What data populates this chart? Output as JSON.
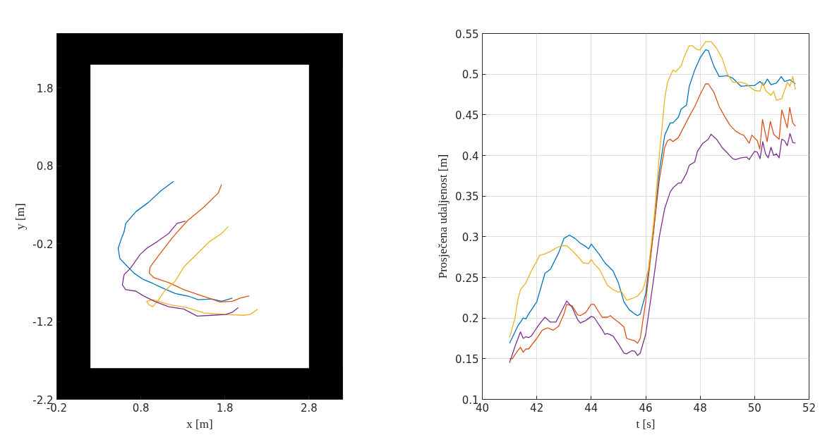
{
  "chart_data": [
    {
      "type": "line",
      "xlabel": "x [m]",
      "ylabel": "y [m]",
      "xlim": [
        -0.2,
        3.2
      ],
      "ylim": [
        -2.2,
        2.5
      ],
      "xticks": [
        -0.2,
        0.8,
        1.8,
        2.8
      ],
      "yticks": [
        -2.2,
        -1.2,
        -0.2,
        0.8,
        1.8
      ],
      "grid": false,
      "bands": [
        {
          "axis": "x",
          "from": -0.2,
          "to": 0.2,
          "color": "#000000"
        },
        {
          "axis": "x",
          "from": 2.8,
          "to": 3.2,
          "color": "#000000"
        },
        {
          "axis": "y",
          "from": -2.2,
          "to": -1.8,
          "color": "#000000"
        },
        {
          "axis": "y",
          "from": 2.1,
          "to": 2.5,
          "color": "#000000"
        }
      ],
      "series": [
        {
          "color": "#0072bd",
          "x": [
            1.19,
            1.04,
            0.89,
            0.74,
            0.66,
            0.62,
            0.6,
            0.57,
            0.53,
            0.55,
            0.62,
            0.72,
            0.83,
            0.94,
            1.06,
            1.21,
            1.38,
            1.48,
            1.64,
            1.76,
            1.89
          ],
          "values": [
            0.6,
            0.48,
            0.33,
            0.21,
            0.11,
            0.06,
            -0.05,
            -0.13,
            -0.26,
            -0.39,
            -0.47,
            -0.58,
            -0.66,
            -0.71,
            -0.77,
            -0.84,
            -0.88,
            -0.92,
            -0.91,
            -0.94,
            -0.9
          ]
        },
        {
          "color": "#d95319",
          "x": [
            1.76,
            1.72,
            1.55,
            1.36,
            1.25,
            1.17,
            1.02,
            0.91,
            0.9,
            0.96,
            1.13,
            1.31,
            1.47,
            1.64,
            1.74,
            1.89,
            1.98,
            2.09
          ],
          "values": [
            0.56,
            0.45,
            0.27,
            0.1,
            -0.03,
            -0.13,
            -0.34,
            -0.5,
            -0.58,
            -0.64,
            -0.7,
            -0.79,
            -0.85,
            -0.91,
            -0.95,
            -0.94,
            -0.9,
            -0.87
          ]
        },
        {
          "color": "#edb120",
          "x": [
            1.84,
            1.76,
            1.62,
            1.47,
            1.31,
            1.21,
            1.08,
            1.0,
            0.94,
            0.89,
            0.87,
            0.94,
            1.13,
            1.34,
            1.55,
            1.81,
            2.02,
            2.1,
            2.19
          ],
          "values": [
            0.02,
            -0.07,
            -0.17,
            -0.33,
            -0.5,
            -0.68,
            -0.81,
            -0.94,
            -1.01,
            -0.98,
            -0.94,
            -0.92,
            -0.98,
            -1.02,
            -1.09,
            -1.11,
            -1.12,
            -1.11,
            -1.04
          ]
        },
        {
          "color": "#7e2f8e",
          "x": [
            1.33,
            1.23,
            1.13,
            1.0,
            0.87,
            0.79,
            0.68,
            0.6,
            0.58,
            0.62,
            0.74,
            0.83,
            0.96,
            1.13,
            1.31,
            1.47,
            1.64,
            1.81,
            1.89,
            1.96
          ],
          "values": [
            0.09,
            0.06,
            -0.07,
            -0.17,
            -0.26,
            -0.34,
            -0.51,
            -0.6,
            -0.73,
            -0.79,
            -0.81,
            -0.87,
            -0.94,
            -1.01,
            -1.04,
            -1.13,
            -1.12,
            -1.11,
            -1.08,
            -1.02
          ]
        }
      ]
    },
    {
      "type": "line",
      "xlabel": "t [s]",
      "ylabel": "Prosječena udaljenost [m]",
      "xlim": [
        40,
        52
      ],
      "ylim": [
        0.1,
        0.55
      ],
      "xticks": [
        40,
        42,
        44,
        46,
        48,
        50,
        52
      ],
      "yticks": [
        0.1,
        0.15,
        0.2,
        0.25,
        0.3,
        0.35,
        0.4,
        0.45,
        0.5,
        0.55
      ],
      "grid": true,
      "series": [
        {
          "color": "#0072bd",
          "x": [
            41.0,
            41.3,
            41.5,
            41.6,
            41.7,
            42.0,
            42.3,
            42.5,
            42.8,
            43.0,
            43.2,
            43.4,
            43.6,
            43.8,
            43.9,
            44.0,
            44.3,
            44.5,
            44.8,
            45.0,
            45.2,
            45.4,
            45.6,
            45.7,
            45.8,
            46.0,
            46.3,
            46.5,
            46.7,
            46.9,
            47.0,
            47.2,
            47.3,
            47.5,
            47.6,
            47.8,
            48.0,
            48.2,
            48.3,
            48.5,
            48.7,
            49.0,
            49.2,
            49.5,
            49.8,
            50.0,
            50.2,
            50.33,
            50.47,
            50.6,
            50.8,
            50.98,
            51.1,
            51.3,
            51.5
          ],
          "values": [
            0.169,
            0.19,
            0.2,
            0.199,
            0.205,
            0.22,
            0.255,
            0.26,
            0.28,
            0.298,
            0.302,
            0.298,
            0.292,
            0.288,
            0.285,
            0.291,
            0.278,
            0.268,
            0.258,
            0.243,
            0.22,
            0.21,
            0.205,
            0.203,
            0.205,
            0.23,
            0.31,
            0.38,
            0.425,
            0.44,
            0.44,
            0.447,
            0.457,
            0.462,
            0.485,
            0.505,
            0.52,
            0.53,
            0.529,
            0.51,
            0.497,
            0.498,
            0.495,
            0.485,
            0.486,
            0.486,
            0.491,
            0.486,
            0.494,
            0.487,
            0.489,
            0.497,
            0.491,
            0.493,
            0.488
          ]
        },
        {
          "color": "#d95319",
          "x": [
            41.0,
            41.1,
            41.3,
            41.4,
            41.5,
            41.6,
            41.7,
            42.0,
            42.2,
            42.4,
            42.6,
            42.8,
            43.0,
            43.1,
            43.3,
            43.5,
            43.6,
            43.8,
            44.0,
            44.1,
            44.4,
            44.6,
            44.7,
            44.8,
            45.0,
            45.2,
            45.3,
            45.5,
            45.6,
            45.7,
            45.8,
            46.0,
            46.3,
            46.5,
            46.7,
            46.8,
            46.9,
            47.0,
            47.2,
            47.4,
            47.6,
            47.8,
            48.0,
            48.2,
            48.3,
            48.5,
            48.7,
            48.9,
            49.1,
            49.3,
            49.5,
            49.6,
            49.8,
            49.9,
            50.1,
            50.19,
            50.29,
            50.46,
            50.58,
            50.7,
            50.9,
            51.0,
            51.2,
            51.29,
            51.4,
            51.5
          ],
          "values": [
            0.15,
            0.15,
            0.16,
            0.164,
            0.158,
            0.162,
            0.162,
            0.175,
            0.185,
            0.188,
            0.185,
            0.19,
            0.205,
            0.217,
            0.215,
            0.204,
            0.203,
            0.207,
            0.217,
            0.217,
            0.201,
            0.201,
            0.203,
            0.2,
            0.195,
            0.189,
            0.175,
            0.173,
            0.172,
            0.169,
            0.175,
            0.22,
            0.31,
            0.37,
            0.41,
            0.418,
            0.42,
            0.417,
            0.422,
            0.435,
            0.448,
            0.46,
            0.475,
            0.488,
            0.488,
            0.478,
            0.46,
            0.448,
            0.437,
            0.43,
            0.426,
            0.425,
            0.415,
            0.425,
            0.418,
            0.408,
            0.444,
            0.417,
            0.442,
            0.426,
            0.42,
            0.456,
            0.434,
            0.459,
            0.44,
            0.436
          ]
        },
        {
          "color": "#edb120",
          "x": [
            41.0,
            41.2,
            41.3,
            41.4,
            41.6,
            41.8,
            42.0,
            42.1,
            42.3,
            42.5,
            42.7,
            42.9,
            43.1,
            43.3,
            43.5,
            43.7,
            43.9,
            44.0,
            44.1,
            44.3,
            44.6,
            44.8,
            45.0,
            45.1,
            45.3,
            45.5,
            45.7,
            45.9,
            46.1,
            46.3,
            46.5,
            46.7,
            46.8,
            47.0,
            47.1,
            47.3,
            47.4,
            47.6,
            47.7,
            47.9,
            48.0,
            48.2,
            48.4,
            48.6,
            48.8,
            49.0,
            49.2,
            49.5,
            49.7,
            49.8,
            50.0,
            50.2,
            50.3,
            50.4,
            50.6,
            50.7,
            50.8,
            51.0,
            51.2,
            51.3,
            51.4,
            51.5
          ],
          "values": [
            0.176,
            0.2,
            0.222,
            0.235,
            0.243,
            0.258,
            0.27,
            0.277,
            0.279,
            0.282,
            0.286,
            0.289,
            0.289,
            0.283,
            0.276,
            0.268,
            0.267,
            0.272,
            0.267,
            0.26,
            0.24,
            0.235,
            0.232,
            0.233,
            0.222,
            0.224,
            0.227,
            0.235,
            0.26,
            0.32,
            0.4,
            0.47,
            0.49,
            0.505,
            0.503,
            0.51,
            0.52,
            0.535,
            0.535,
            0.53,
            0.53,
            0.54,
            0.54,
            0.532,
            0.52,
            0.5,
            0.49,
            0.49,
            0.488,
            0.485,
            0.48,
            0.479,
            0.49,
            0.48,
            0.474,
            0.479,
            0.468,
            0.47,
            0.49,
            0.485,
            0.497,
            0.481
          ]
        },
        {
          "color": "#7e2f8e",
          "x": [
            41.0,
            41.2,
            41.4,
            41.5,
            41.6,
            41.7,
            41.8,
            42.0,
            42.2,
            42.3,
            42.5,
            42.7,
            42.9,
            43.1,
            43.3,
            43.5,
            43.6,
            43.8,
            44.0,
            44.1,
            44.4,
            44.5,
            44.6,
            44.8,
            45.0,
            45.2,
            45.3,
            45.5,
            45.6,
            45.7,
            45.8,
            46.0,
            46.3,
            46.5,
            46.7,
            46.9,
            47.0,
            47.2,
            47.3,
            47.5,
            47.6,
            47.8,
            47.9,
            48.1,
            48.3,
            48.4,
            48.6,
            48.8,
            49.0,
            49.2,
            49.3,
            49.5,
            49.7,
            49.8,
            50.0,
            50.1,
            50.2,
            50.3,
            50.4,
            50.5,
            50.6,
            50.7,
            50.8,
            50.9,
            51.0,
            51.1,
            51.2,
            51.3,
            51.4,
            51.5
          ],
          "values": [
            0.145,
            0.165,
            0.183,
            0.175,
            0.177,
            0.176,
            0.178,
            0.188,
            0.197,
            0.201,
            0.195,
            0.195,
            0.208,
            0.221,
            0.213,
            0.198,
            0.194,
            0.197,
            0.202,
            0.201,
            0.186,
            0.18,
            0.181,
            0.178,
            0.168,
            0.157,
            0.156,
            0.16,
            0.159,
            0.154,
            0.157,
            0.18,
            0.25,
            0.3,
            0.335,
            0.355,
            0.36,
            0.366,
            0.366,
            0.378,
            0.388,
            0.392,
            0.405,
            0.415,
            0.42,
            0.426,
            0.42,
            0.41,
            0.403,
            0.396,
            0.395,
            0.397,
            0.398,
            0.395,
            0.405,
            0.404,
            0.396,
            0.417,
            0.402,
            0.397,
            0.41,
            0.4,
            0.402,
            0.397,
            0.42,
            0.418,
            0.412,
            0.427,
            0.416,
            0.415
          ]
        }
      ]
    }
  ]
}
